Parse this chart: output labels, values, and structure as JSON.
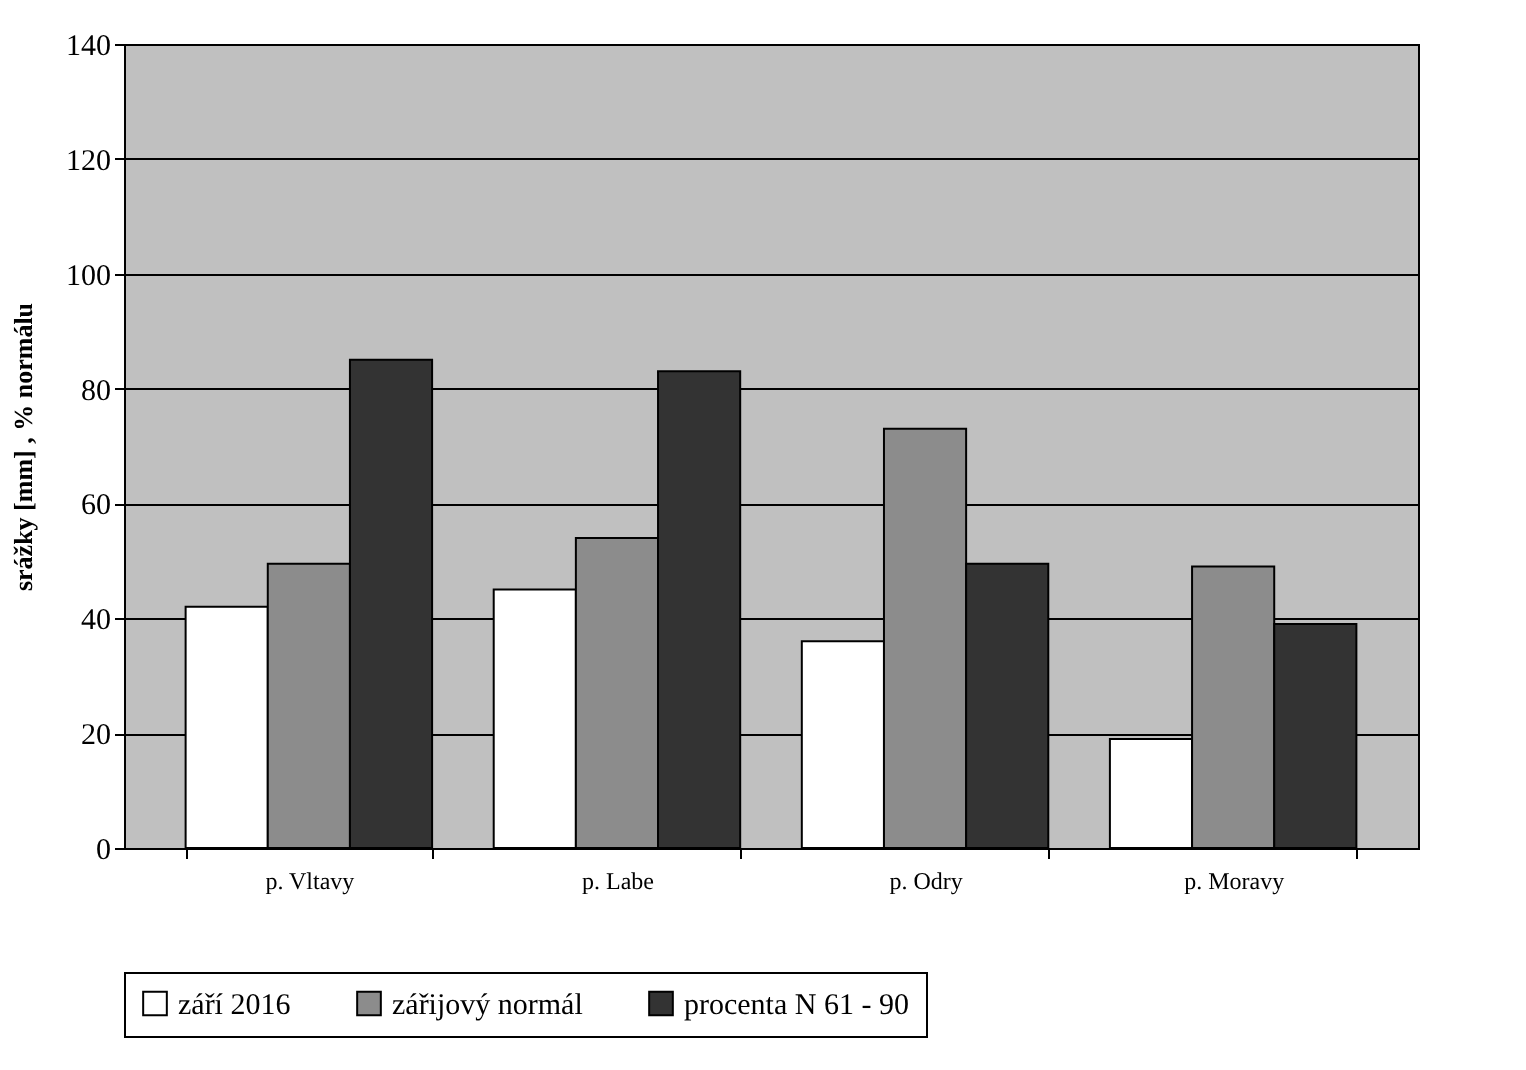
{
  "chart_data": {
    "type": "bar",
    "ylabel": "srážky [mm] ,   % normálu",
    "categories": [
      "p. Vltavy",
      "p. Labe",
      "p. Odry",
      "p. Moravy"
    ],
    "series": [
      {
        "name": "září 2016",
        "color": "#ffffff",
        "values": [
          42,
          45,
          36,
          19
        ]
      },
      {
        "name": "zářijový normál",
        "color": "#8c8c8c",
        "values": [
          49.5,
          54,
          73,
          49
        ]
      },
      {
        "name": "procenta N 61 - 90",
        "color": "#333333",
        "values": [
          85,
          83,
          49.5,
          39
        ]
      }
    ],
    "ylim": [
      0,
      140
    ],
    "yticks": [
      0,
      20,
      40,
      60,
      80,
      100,
      120,
      140
    ],
    "grid": "y",
    "legend": "bottom"
  }
}
